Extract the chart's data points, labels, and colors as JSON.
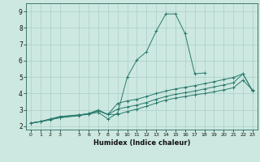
{
  "title": "",
  "xlabel": "Humidex (Indice chaleur)",
  "bg_color": "#cce8e0",
  "grid_color": "#aacfc8",
  "line_color": "#2a7a6e",
  "xlim": [
    -0.5,
    23.5
  ],
  "ylim": [
    1.8,
    9.5
  ],
  "xticks": [
    0,
    1,
    2,
    3,
    5,
    6,
    7,
    8,
    9,
    10,
    11,
    12,
    13,
    14,
    15,
    16,
    17,
    18,
    19,
    20,
    21,
    22,
    23
  ],
  "yticks": [
    2,
    3,
    4,
    5,
    6,
    7,
    8,
    9
  ],
  "lines": [
    {
      "x": [
        0,
        1,
        2,
        3,
        5,
        6,
        7,
        8,
        9,
        10,
        11,
        12,
        13,
        14,
        15,
        16,
        17,
        18
      ],
      "y": [
        2.2,
        2.3,
        2.45,
        2.6,
        2.7,
        2.75,
        2.85,
        2.45,
        2.8,
        5.0,
        6.05,
        6.55,
        7.8,
        8.85,
        8.85,
        7.65,
        5.2,
        5.25
      ]
    },
    {
      "x": [
        0,
        1,
        2,
        3,
        5,
        6,
        7,
        8,
        9,
        10,
        11,
        12,
        13,
        14,
        15,
        16,
        17,
        18,
        19,
        20,
        21,
        22,
        23
      ],
      "y": [
        2.2,
        2.28,
        2.4,
        2.52,
        2.65,
        2.75,
        2.95,
        2.72,
        2.72,
        2.9,
        3.05,
        3.22,
        3.42,
        3.6,
        3.72,
        3.82,
        3.92,
        4.0,
        4.1,
        4.22,
        4.35,
        4.82,
        4.2
      ]
    },
    {
      "x": [
        0,
        1,
        2,
        3,
        5,
        6,
        7,
        8,
        9,
        10,
        11,
        12,
        13,
        14,
        15,
        16,
        17,
        18,
        19,
        20,
        21,
        22,
        23
      ],
      "y": [
        2.2,
        2.28,
        2.42,
        2.55,
        2.68,
        2.78,
        2.95,
        2.72,
        3.05,
        3.18,
        3.3,
        3.45,
        3.65,
        3.82,
        3.95,
        4.05,
        4.15,
        4.28,
        4.4,
        4.52,
        4.65,
        5.2,
        4.15
      ]
    },
    {
      "x": [
        0,
        1,
        2,
        3,
        5,
        6,
        7,
        8,
        9,
        10,
        11,
        12,
        13,
        14,
        15,
        16,
        17,
        18,
        19,
        20,
        21,
        22,
        23
      ],
      "y": [
        2.2,
        2.28,
        2.42,
        2.55,
        2.68,
        2.78,
        3.0,
        2.72,
        3.4,
        3.55,
        3.65,
        3.82,
        4.0,
        4.15,
        4.28,
        4.38,
        4.48,
        4.6,
        4.72,
        4.85,
        4.98,
        5.2,
        4.15
      ]
    }
  ]
}
